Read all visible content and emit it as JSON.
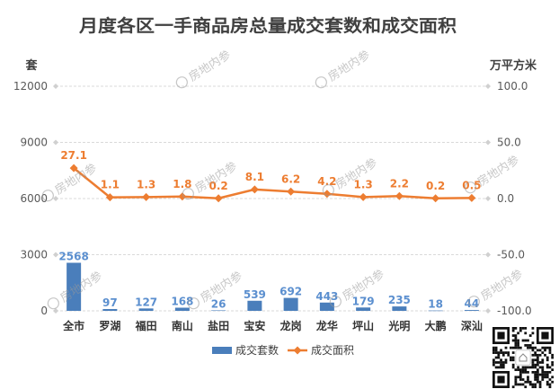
{
  "chart_data": {
    "type": "bar",
    "title": "月度各区一手商品房总量成交套数和成交面积",
    "categories": [
      "全市",
      "罗湖",
      "福田",
      "南山",
      "盐田",
      "宝安",
      "龙岗",
      "龙华",
      "坪山",
      "光明",
      "大鹏",
      "深汕"
    ],
    "series": [
      {
        "name": "成交套数",
        "type": "bar",
        "axis": "left",
        "color": "#4A7EBB",
        "label_color": "#5B8FCF",
        "values": [
          2568,
          97,
          127,
          168,
          26,
          539,
          692,
          443,
          179,
          235,
          18,
          44
        ]
      },
      {
        "name": "成交面积",
        "type": "line",
        "axis": "right",
        "color": "#ED7D31",
        "values": [
          27.1,
          1.1,
          1.3,
          1.8,
          0.2,
          8.1,
          6.2,
          4.2,
          1.3,
          2.2,
          0.2,
          0.5
        ]
      }
    ],
    "y_left": {
      "label": "套",
      "range": [
        0,
        12000
      ],
      "ticks": [
        "12000",
        "9000",
        "6000",
        "3000",
        "0"
      ]
    },
    "y_right": {
      "label": "万平方米",
      "range": [
        -100,
        100
      ],
      "ticks": [
        "100.0",
        "50.0",
        "0.0",
        "-50.0",
        "-100.0"
      ]
    },
    "grid": true,
    "legend": "bottom"
  },
  "watermark": {
    "text": "房地内参"
  }
}
